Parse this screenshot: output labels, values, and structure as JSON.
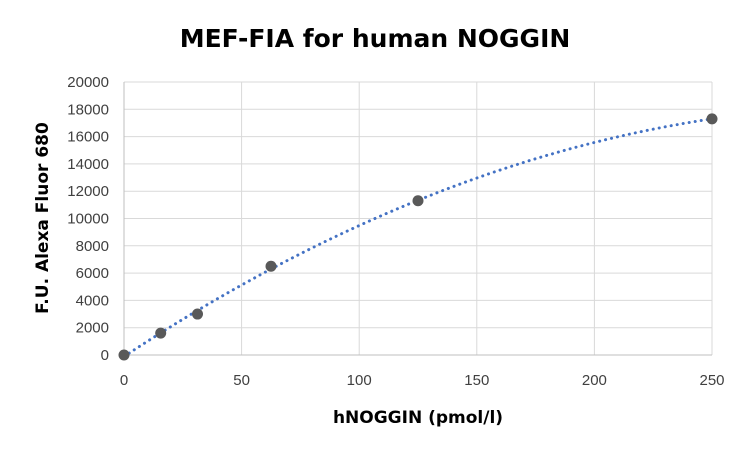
{
  "chart_data": {
    "type": "scatter",
    "title": "MEF-FIA for human NOGGIN",
    "xlabel": "hNOGGIN (pmol/l)",
    "ylabel": "F.U. Alexa Fluor 680",
    "xlim": [
      0,
      250
    ],
    "ylim": [
      0,
      20000
    ],
    "x_ticks": [
      0,
      50,
      100,
      150,
      200,
      250
    ],
    "y_ticks": [
      0,
      2000,
      4000,
      6000,
      8000,
      10000,
      12000,
      14000,
      16000,
      18000,
      20000
    ],
    "grid": true,
    "legend": "none",
    "series": [
      {
        "x": [
          0,
          15.6,
          31.25,
          62.5,
          125,
          250
        ],
        "y": [
          0,
          1600,
          3000,
          6500,
          11300,
          17300
        ],
        "marker_color": "#595959",
        "trendline": "polynomial",
        "trendline_style": "dotted",
        "trendline_color": "#4472C4"
      }
    ]
  }
}
